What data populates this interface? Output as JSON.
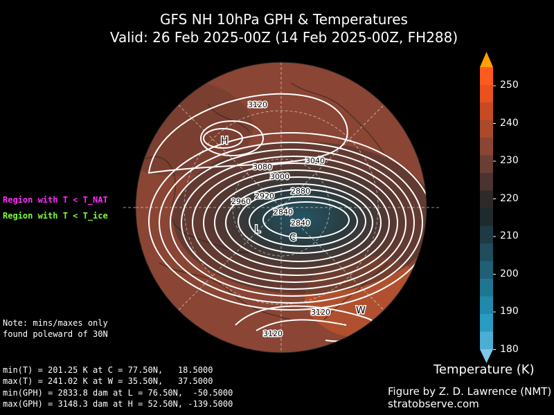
{
  "title": {
    "line1": "GFS NH 10hPa GPH & Temperatures",
    "line2": "Valid: 26 Feb 2025-00Z  (14 Feb 2025-00Z, FH288)"
  },
  "legend": {
    "nat_label": "Region with T < T_NAT",
    "ice_label": "Region with T < T_ice",
    "nat_color": "#ff2bff",
    "ice_color": "#7dff3a"
  },
  "note": {
    "line1": "Note: mins/maxes only",
    "line2": "found poleward of 30N"
  },
  "stats": [
    "min(T) = 201.25 K at C = 77.50N,   18.5000",
    "max(T) = 241.02 K at W = 35.50N,   37.5000",
    "min(GPH) = 2833.8 dam at L = 76.50N,  -50.5000",
    "max(GPH) = 3148.3 dam at H = 52.50N, -139.5000"
  ],
  "colorbar": {
    "label": "Temperature (K)",
    "ticks": [
      "250",
      "240",
      "230",
      "220",
      "210",
      "200",
      "190",
      "180"
    ],
    "colors": [
      "#ff5a1e",
      "#e8521f",
      "#c84a22",
      "#aa4a2a",
      "#8a4534",
      "#6a3e34",
      "#4a3330",
      "#2e2a2a",
      "#1f2a2e",
      "#1e3a45",
      "#1f4d5c",
      "#1f6075",
      "#1f7690",
      "#2189ab",
      "#2a9bc2",
      "#4aaed5"
    ],
    "over_color": "#ffa000",
    "under_color": "#7ec8e8"
  },
  "map": {
    "markers": [
      {
        "label": "H"
      },
      {
        "label": "L"
      },
      {
        "label": "C"
      },
      {
        "label": "W"
      }
    ],
    "contour_labels": [
      "3120",
      "3080",
      "3040",
      "3000",
      "2960",
      "2920",
      "2880",
      "2840",
      "2840",
      "3120",
      "3120"
    ]
  },
  "credit": {
    "line1": "Figure by Z. D. Lawrence (NMT)",
    "line2": "stratobserve.com"
  }
}
